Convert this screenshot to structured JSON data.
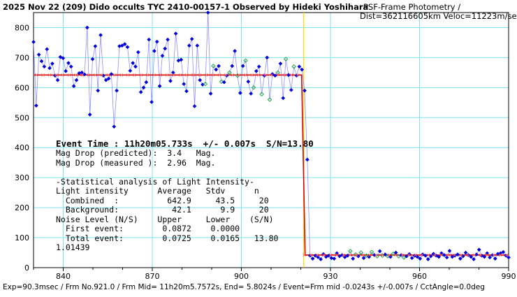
{
  "header": {
    "title": "2025 Nov 22 (209) Dido occults TYC 2410-00157-1 Observed by Hideki Yoshihara",
    "subtitle_line1": "PSF-Frame Photometry /",
    "subtitle_line2": "Dist=362116605km Veloc=11223m/sec"
  },
  "annotation": {
    "event_time": "Event Time : 11h20m05.733s  +/- 0.007s  S/N=13.80",
    "lines": [
      "Mag Drop (predicted):  3.4   Mag.",
      "Mag Drop (measured ):  2.96  Mag.",
      "",
      "-Statistical analysis of Light Intensity-",
      "Light intensity      Average   Stdv      n",
      "  Combined  :          642.9     43.5     20",
      "  Background:           42.1      9.9     20",
      "Noise Level (N/S)    Upper     Lower    (S/N)",
      "  First event:        0.0872    0.0000",
      "  Total event:        0.0725    0.0165   13.80",
      "1.01439"
    ]
  },
  "footer": {
    "text": "Exp=90.3msec / Frm No.921.0 / Frm Mid= 11h20m5.7572s, End= 5.8024s / Event=Frm mid -0.0243s +/-0.007s / CctAngle=0.0deg"
  },
  "chart_data": {
    "type": "scatter",
    "xlim": [
      830,
      990
    ],
    "ylim": [
      0,
      850
    ],
    "xticks": [
      840,
      870,
      900,
      930,
      960,
      990
    ],
    "yticks": [
      0,
      100,
      200,
      300,
      400,
      500,
      600,
      700,
      800
    ],
    "grid": true,
    "event_frame": 921,
    "series": [
      {
        "role": "measured",
        "color": "#0000dd",
        "x0": 830,
        "values": [
          752,
          540,
          710,
          688,
          670,
          728,
          665,
          680,
          640,
          625,
          702,
          698,
          655,
          682,
          670,
          605,
          625,
          648,
          650,
          644,
          800,
          510,
          695,
          738,
          590,
          775,
          640,
          625,
          630,
          645,
          470,
          590,
          738,
          740,
          745,
          735,
          656,
          682,
          670,
          718,
          585,
          600,
          618,
          760,
          552,
          722,
          753,
          605,
          706,
          730,
          760,
          622,
          650,
          780,
          690,
          693,
          612,
          588,
          740,
          762,
          538,
          740,
          625,
          610,
          612,
          850,
          580,
          672,
          660,
          672,
          620,
          618,
          640,
          650,
          672,
          722,
          640,
          582,
          672,
          690,
          620,
          580,
          600,
          655,
          670,
          578,
          640,
          700,
          560,
          645,
          640,
          650,
          680,
          565,
          695,
          642,
          592,
          670,
          640,
          670,
          660,
          590,
          360,
          40,
          30,
          40,
          35,
          28,
          45,
          36,
          40,
          32,
          30,
          48,
          38,
          42,
          35,
          40,
          55,
          30,
          44,
          38,
          50,
          32,
          40,
          36,
          52,
          42,
          38,
          55,
          40,
          44,
          38,
          36,
          46,
          50,
          38,
          42,
          34,
          38,
          45,
          32,
          40,
          36,
          30,
          44,
          40,
          28,
          38,
          46,
          40,
          36,
          48,
          42,
          34,
          56,
          36,
          40,
          44,
          30,
          38,
          50,
          42,
          36,
          28,
          44,
          60,
          40,
          36,
          48,
          34,
          42,
          30,
          46,
          48,
          52,
          40,
          34
        ]
      },
      {
        "role": "fit_line",
        "color": "#dd0000",
        "before": 642,
        "after": 42
      }
    ]
  }
}
